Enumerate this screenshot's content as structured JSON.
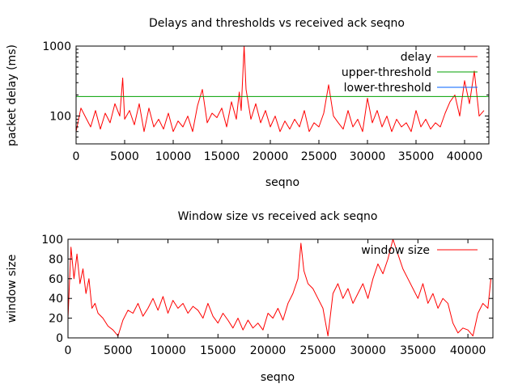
{
  "chart_data": [
    {
      "type": "line",
      "title": "Delays and thresholds vs received ack seqno",
      "xlabel": "seqno",
      "ylabel": "packet delay (ms)",
      "xlim": [
        0,
        42500
      ],
      "ylim": [
        40,
        1000
      ],
      "yscale": "log",
      "xticks": [
        {
          "value": 0,
          "label": "0"
        },
        {
          "value": 5000,
          "label": "5000"
        },
        {
          "value": 10000,
          "label": "10000"
        },
        {
          "value": 15000,
          "label": "15000"
        },
        {
          "value": 20000,
          "label": "20000"
        },
        {
          "value": 25000,
          "label": "25000"
        },
        {
          "value": 30000,
          "label": "30000"
        },
        {
          "value": 35000,
          "label": "35000"
        },
        {
          "value": 40000,
          "label": "40000"
        }
      ],
      "yticks": [
        {
          "value": 100,
          "label": "100"
        },
        {
          "value": 1000,
          "label": "1000"
        }
      ],
      "grid": false,
      "legend_position": "top-right",
      "series": [
        {
          "name": "delay",
          "color": "#ff0000",
          "x": [
            0,
            500,
            1000,
            1500,
            2000,
            2500,
            3000,
            3500,
            4000,
            4500,
            4800,
            5000,
            5500,
            6000,
            6500,
            7000,
            7500,
            8000,
            8500,
            9000,
            9500,
            10000,
            10500,
            11000,
            11500,
            12000,
            12500,
            13000,
            13500,
            14000,
            14500,
            15000,
            15500,
            16000,
            16500,
            16800,
            17000,
            17300,
            17500,
            18000,
            18500,
            19000,
            19500,
            20000,
            20500,
            21000,
            21500,
            22000,
            22500,
            23000,
            23500,
            24000,
            24500,
            25000,
            25500,
            26000,
            26500,
            27000,
            27500,
            28000,
            28500,
            29000,
            29500,
            30000,
            30500,
            31000,
            31500,
            32000,
            32500,
            33000,
            33500,
            34000,
            34500,
            35000,
            35500,
            36000,
            36500,
            37000,
            37500,
            38000,
            38500,
            39000,
            39500,
            40000,
            40500,
            41000,
            41500,
            42000
          ],
          "y": [
            60,
            130,
            95,
            70,
            120,
            65,
            110,
            80,
            150,
            100,
            350,
            90,
            120,
            75,
            150,
            60,
            130,
            70,
            90,
            65,
            110,
            60,
            85,
            70,
            100,
            60,
            140,
            240,
            80,
            110,
            95,
            130,
            70,
            160,
            90,
            220,
            120,
            1000,
            240,
            90,
            150,
            80,
            120,
            70,
            100,
            60,
            85,
            65,
            90,
            70,
            120,
            60,
            80,
            70,
            110,
            280,
            100,
            80,
            65,
            120,
            70,
            90,
            60,
            180,
            80,
            120,
            70,
            100,
            60,
            90,
            70,
            80,
            60,
            120,
            70,
            90,
            65,
            80,
            70,
            110,
            160,
            200,
            100,
            320,
            150,
            440,
            100,
            120
          ]
        },
        {
          "name": "upper-threshold",
          "color": "#00a000",
          "x": [
            0,
            42500
          ],
          "y": [
            190,
            190
          ]
        },
        {
          "name": "lower-threshold",
          "color": "#0060ff",
          "x": [
            0,
            42500
          ],
          "y": [
            40,
            40
          ]
        }
      ]
    },
    {
      "type": "line",
      "title": "Window size vs received ack seqno",
      "xlabel": "seqno",
      "ylabel": "window size",
      "xlim": [
        0,
        42500
      ],
      "ylim": [
        0,
        100
      ],
      "yscale": "linear",
      "xticks": [
        {
          "value": 0,
          "label": "0"
        },
        {
          "value": 5000,
          "label": "5000"
        },
        {
          "value": 10000,
          "label": "10000"
        },
        {
          "value": 15000,
          "label": "15000"
        },
        {
          "value": 20000,
          "label": "20000"
        },
        {
          "value": 25000,
          "label": "25000"
        },
        {
          "value": 30000,
          "label": "30000"
        },
        {
          "value": 35000,
          "label": "35000"
        },
        {
          "value": 40000,
          "label": "40000"
        }
      ],
      "yticks": [
        {
          "value": 0,
          "label": "0"
        },
        {
          "value": 20,
          "label": "20"
        },
        {
          "value": 40,
          "label": "40"
        },
        {
          "value": 60,
          "label": "60"
        },
        {
          "value": 80,
          "label": "80"
        },
        {
          "value": 100,
          "label": "100"
        }
      ],
      "grid": false,
      "legend_position": "top-right",
      "series": [
        {
          "name": "window size",
          "color": "#ff0000",
          "x": [
            0,
            300,
            600,
            900,
            1200,
            1500,
            1800,
            2100,
            2400,
            2700,
            3000,
            3500,
            4000,
            4500,
            5000,
            5500,
            6000,
            6500,
            7000,
            7500,
            8000,
            8500,
            9000,
            9500,
            10000,
            10500,
            11000,
            11500,
            12000,
            12500,
            13000,
            13500,
            14000,
            14500,
            15000,
            15500,
            16000,
            16500,
            17000,
            17500,
            18000,
            18500,
            19000,
            19500,
            20000,
            20500,
            21000,
            21500,
            22000,
            22500,
            23000,
            23300,
            23600,
            24000,
            24500,
            25000,
            25500,
            26000,
            26500,
            27000,
            27500,
            28000,
            28500,
            29000,
            29500,
            30000,
            30500,
            31000,
            31500,
            32000,
            32500,
            33000,
            33500,
            34000,
            34500,
            35000,
            35500,
            36000,
            36500,
            37000,
            37500,
            38000,
            38500,
            39000,
            39500,
            40000,
            40500,
            41000,
            41500,
            42000,
            42300
          ],
          "y": [
            20,
            92,
            60,
            85,
            55,
            70,
            45,
            60,
            30,
            35,
            25,
            20,
            12,
            8,
            2,
            18,
            28,
            25,
            35,
            22,
            30,
            40,
            28,
            42,
            25,
            38,
            30,
            35,
            25,
            32,
            28,
            20,
            35,
            22,
            15,
            25,
            18,
            10,
            20,
            8,
            18,
            10,
            15,
            8,
            25,
            20,
            30,
            18,
            35,
            45,
            60,
            96,
            68,
            55,
            50,
            40,
            30,
            2,
            45,
            55,
            40,
            50,
            35,
            45,
            55,
            40,
            60,
            75,
            65,
            80,
            100,
            85,
            70,
            60,
            50,
            40,
            55,
            35,
            45,
            30,
            40,
            35,
            15,
            5,
            10,
            8,
            2,
            25,
            35,
            30,
            60
          ]
        }
      ]
    }
  ]
}
